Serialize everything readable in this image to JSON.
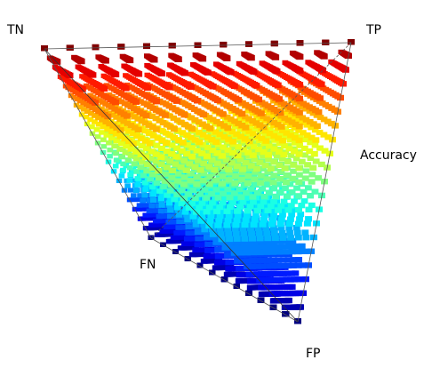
{
  "labels": {
    "tn": "TN",
    "tp": "TP",
    "fn": "FN",
    "fp": "FP",
    "accuracy": "Accuracy"
  }
}
